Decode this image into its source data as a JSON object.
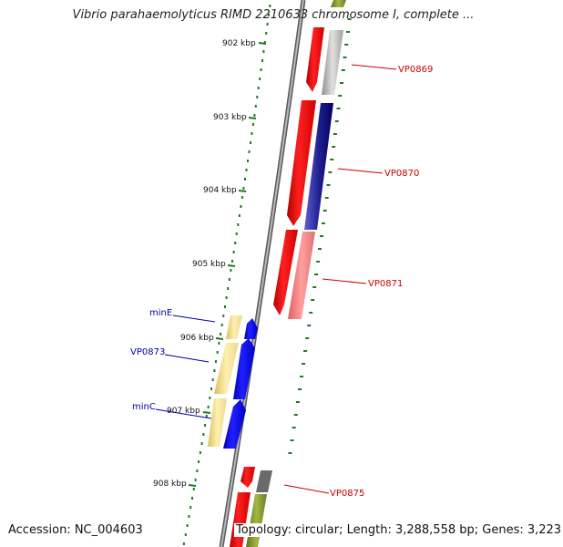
{
  "title": "Vibrio parahaemolyticus RIMD 2210633 chromosome I, complete ...",
  "accession": "Accession: NC_004603",
  "topology": "Topology: circular; Length: 3,288,558 bp; Genes: 3,223",
  "colors": {
    "backbone": "#8a8a8a",
    "ticks": "#1e7a1e",
    "forward_label": "#cc0000",
    "reverse_label": "#0000aa"
  },
  "ticks": [
    {
      "label": "902 kbp"
    },
    {
      "label": "903 kbp"
    },
    {
      "label": "904 kbp"
    },
    {
      "label": "905 kbp"
    },
    {
      "label": "906 kbp"
    },
    {
      "label": "907 kbp"
    },
    {
      "label": "908 kbp"
    }
  ],
  "gene_labels": [
    {
      "label": "VP0869",
      "strand": "forward"
    },
    {
      "label": "VP0870",
      "strand": "forward"
    },
    {
      "label": "VP0871",
      "strand": "forward"
    },
    {
      "label": "minE",
      "strand": "reverse"
    },
    {
      "label": "VP0873",
      "strand": "reverse"
    },
    {
      "label": "minC",
      "strand": "reverse"
    },
    {
      "label": "VP0875",
      "strand": "forward"
    }
  ]
}
